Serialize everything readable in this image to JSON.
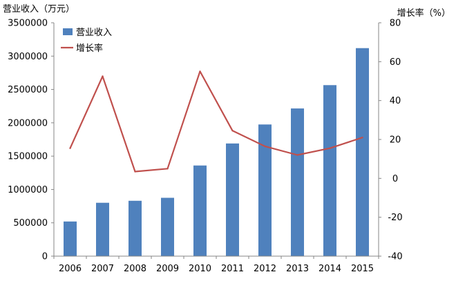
{
  "chart_data": {
    "type": "bar",
    "title": "",
    "categories": [
      "2006",
      "2007",
      "2008",
      "2009",
      "2010",
      "2011",
      "2012",
      "2013",
      "2014",
      "2015"
    ],
    "series": [
      {
        "name": "营业收入",
        "type": "bar",
        "axis": "left",
        "color": "#4f81bd",
        "values": [
          520000,
          800000,
          830000,
          875000,
          1360000,
          1690000,
          1975000,
          2215000,
          2565000,
          3120000
        ]
      },
      {
        "name": "增长率",
        "type": "line",
        "axis": "right",
        "color": "#c0504d",
        "values": [
          15.5,
          52.5,
          3.5,
          5,
          55,
          24.5,
          16.5,
          12,
          15.5,
          21
        ]
      }
    ],
    "y_left": {
      "label": "营业收入（万元）",
      "min": 0,
      "max": 3500000,
      "ticks": [
        "0",
        "500000",
        "1000000",
        "1500000",
        "2000000",
        "2500000",
        "3000000",
        "3500000"
      ]
    },
    "y_right": {
      "label": "增长率（%）",
      "min": -40,
      "max": 80,
      "ticks": [
        "-40",
        "-20",
        "0",
        "20",
        "40",
        "60",
        "80"
      ]
    },
    "grid": false,
    "legend_position": "top-left"
  }
}
